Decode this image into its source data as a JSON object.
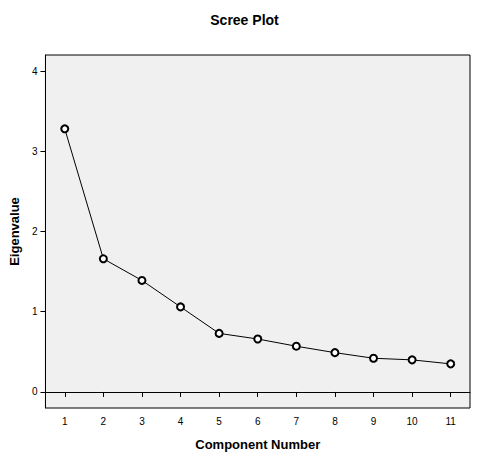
{
  "chart_data": {
    "type": "line",
    "title": "Scree Plot",
    "x_label": "Component Number",
    "y_label": "Eigenvalue",
    "categories": [
      "1",
      "2",
      "3",
      "4",
      "5",
      "6",
      "7",
      "8",
      "9",
      "10",
      "11"
    ],
    "values": [
      3.28,
      1.66,
      1.39,
      1.06,
      0.73,
      0.66,
      0.57,
      0.49,
      0.42,
      0.4,
      0.35
    ],
    "color": "#000000",
    "marker": "circle",
    "ylim": [
      -0.2,
      4.2
    ],
    "yticks": [
      0,
      1,
      2,
      3,
      4
    ],
    "grid": false
  }
}
